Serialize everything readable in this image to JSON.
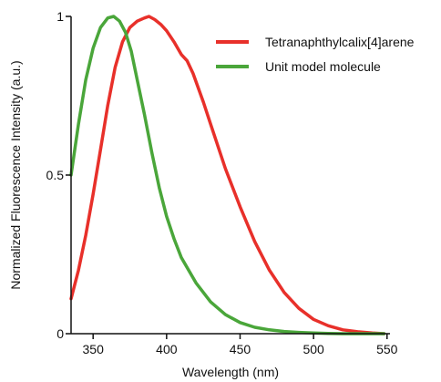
{
  "chart_data": {
    "type": "line",
    "title": "",
    "xlabel": "Wavelength (nm)",
    "ylabel": "Normalized Fluorescence Intensity (a.u.)",
    "xlim": [
      335,
      552
    ],
    "ylim": [
      0,
      1
    ],
    "x_ticks": [
      350,
      400,
      450,
      500,
      550
    ],
    "x_tick_labels": [
      "350",
      "400",
      "450",
      "500",
      "550"
    ],
    "y_ticks": [
      0,
      0.5,
      1
    ],
    "y_tick_labels": [
      "0",
      "0.5",
      "1"
    ],
    "grid": false,
    "legend_position": "top-right",
    "series": [
      {
        "name": "Tetranaphthylcalix[4]arene",
        "color": "#e8302a",
        "points": [
          [
            335,
            0.11
          ],
          [
            340,
            0.2
          ],
          [
            345,
            0.31
          ],
          [
            350,
            0.44
          ],
          [
            355,
            0.58
          ],
          [
            360,
            0.72
          ],
          [
            365,
            0.84
          ],
          [
            370,
            0.92
          ],
          [
            375,
            0.965
          ],
          [
            380,
            0.985
          ],
          [
            385,
            0.995
          ],
          [
            388,
            1.0
          ],
          [
            392,
            0.99
          ],
          [
            396,
            0.975
          ],
          [
            400,
            0.955
          ],
          [
            405,
            0.92
          ],
          [
            410,
            0.88
          ],
          [
            414,
            0.86
          ],
          [
            418,
            0.82
          ],
          [
            425,
            0.73
          ],
          [
            430,
            0.66
          ],
          [
            440,
            0.52
          ],
          [
            450,
            0.4
          ],
          [
            460,
            0.29
          ],
          [
            470,
            0.2
          ],
          [
            480,
            0.13
          ],
          [
            490,
            0.08
          ],
          [
            500,
            0.045
          ],
          [
            510,
            0.025
          ],
          [
            520,
            0.012
          ],
          [
            530,
            0.006
          ],
          [
            540,
            0.002
          ],
          [
            548,
            0.0
          ]
        ]
      },
      {
        "name": "Unit model molecule",
        "color": "#4aa63a",
        "points": [
          [
            335,
            0.5
          ],
          [
            340,
            0.66
          ],
          [
            345,
            0.8
          ],
          [
            350,
            0.9
          ],
          [
            355,
            0.965
          ],
          [
            360,
            0.995
          ],
          [
            364,
            1.0
          ],
          [
            368,
            0.985
          ],
          [
            372,
            0.95
          ],
          [
            376,
            0.89
          ],
          [
            380,
            0.8
          ],
          [
            385,
            0.69
          ],
          [
            390,
            0.57
          ],
          [
            395,
            0.46
          ],
          [
            400,
            0.37
          ],
          [
            405,
            0.3
          ],
          [
            410,
            0.24
          ],
          [
            420,
            0.16
          ],
          [
            430,
            0.1
          ],
          [
            440,
            0.06
          ],
          [
            450,
            0.035
          ],
          [
            460,
            0.02
          ],
          [
            470,
            0.012
          ],
          [
            480,
            0.007
          ],
          [
            490,
            0.004
          ],
          [
            500,
            0.002
          ],
          [
            510,
            0.001
          ],
          [
            520,
            0.0
          ],
          [
            548,
            0.0
          ]
        ]
      }
    ]
  }
}
